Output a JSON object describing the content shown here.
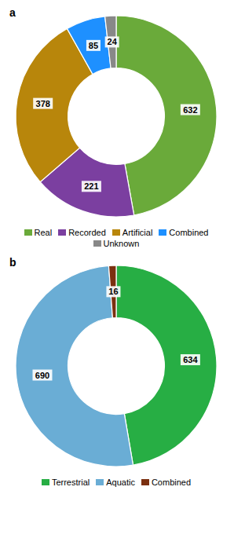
{
  "chart_data": [
    {
      "type": "pie",
      "title": "a",
      "categories": [
        "Real",
        "Recorded",
        "Artificial",
        "Combined",
        "Unknown"
      ],
      "values": [
        632,
        221,
        378,
        85,
        24
      ],
      "colors": [
        "#6aaa3a",
        "#7b3fa0",
        "#b8860b",
        "#1e90ff",
        "#888888"
      ],
      "data_labels": true,
      "legend": "bottom"
    },
    {
      "type": "pie",
      "title": "b",
      "categories": [
        "Terrestrial",
        "Aquatic",
        "Combined"
      ],
      "values": [
        634,
        690,
        16
      ],
      "colors": [
        "#27ae44",
        "#6aadd5",
        "#7b3010"
      ],
      "data_labels": true,
      "legend": "bottom"
    }
  ]
}
